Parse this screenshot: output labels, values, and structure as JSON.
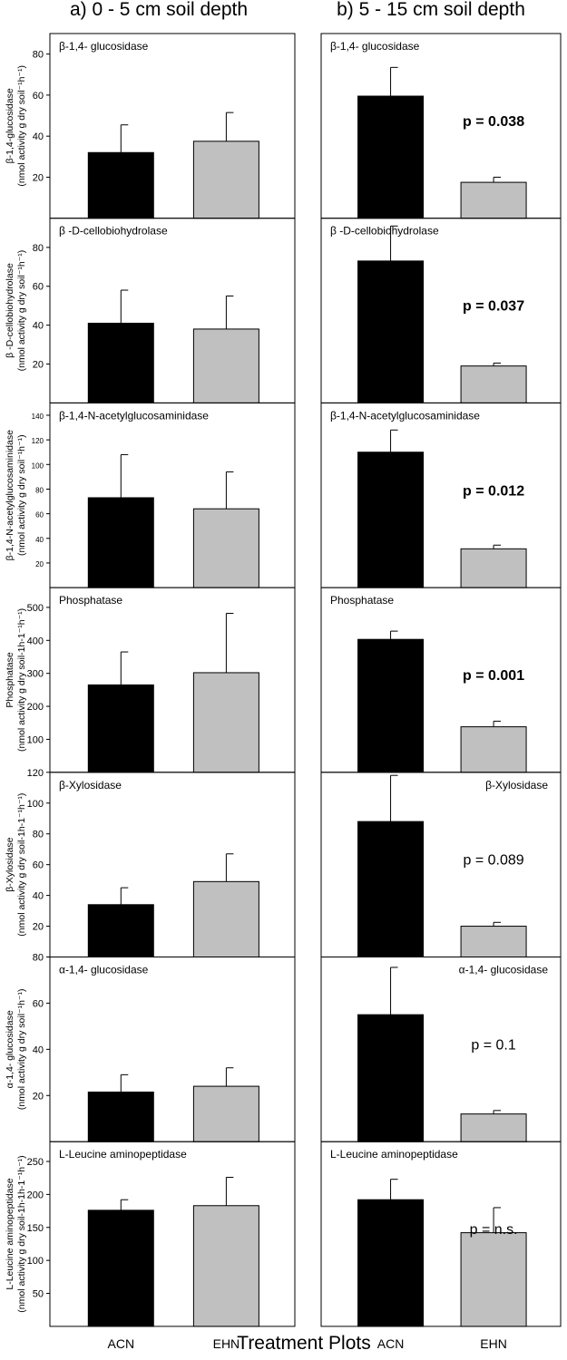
{
  "figure": {
    "col_titles": [
      "a) 0 - 5 cm soil depth",
      "b) 5 - 15 cm soil depth"
    ],
    "x_title": "Treatment Plots",
    "categories": [
      "ACN",
      "EHN"
    ],
    "colors": {
      "ACN": "#000000",
      "EHN": "#c0c0c0",
      "frame": "#000000"
    }
  },
  "chart_data": [
    {
      "type": "bar",
      "enzyme": "β-1,4- glucosidase",
      "ylabel": [
        "β-1,4-glucosidase",
        "(nmol activity g dry soil⁻¹h⁻¹)"
      ],
      "ylim": [
        0,
        90
      ],
      "yticks": [
        20,
        40,
        60,
        80
      ],
      "small_ticks": false,
      "panels": [
        {
          "depth": "0 - 5 cm",
          "label": "β-1,4- glucosidase",
          "label_align": "left",
          "p": "",
          "p_bold": false,
          "values": [
            32,
            37.5
          ],
          "errors": [
            13.5,
            14
          ]
        },
        {
          "depth": "5 - 15 cm",
          "label": "β-1,4- glucosidase",
          "label_align": "left",
          "p": "p = 0.038",
          "p_bold": true,
          "values": [
            59.5,
            17.5
          ],
          "errors": [
            14,
            2.5
          ]
        }
      ]
    },
    {
      "type": "bar",
      "enzyme": "β -D-cellobiohydrolase",
      "ylabel": [
        "β -D-cellobiohydrolase",
        "(nmol activity g dry soil⁻¹h⁻¹)"
      ],
      "ylim": [
        0,
        95
      ],
      "yticks": [
        20,
        40,
        60,
        80
      ],
      "small_ticks": false,
      "panels": [
        {
          "depth": "0 - 5 cm",
          "label": "β -D-cellobiohydrolase",
          "label_align": "left",
          "p": "",
          "p_bold": false,
          "values": [
            41,
            38
          ],
          "errors": [
            17,
            17
          ]
        },
        {
          "depth": "5 - 15 cm",
          "label": "β -D-cellobiohydrolase",
          "label_align": "left",
          "p": "p = 0.037",
          "p_bold": true,
          "values": [
            73,
            19
          ],
          "errors": [
            18,
            1.5
          ]
        }
      ]
    },
    {
      "type": "bar",
      "enzyme": "β-1,4-N-acetylglucosaminidase",
      "ylabel": [
        "β-1,4-N-acetylglucosaminidase",
        "(nmol activity g dry soil⁻¹h⁻¹)"
      ],
      "ylim": [
        0,
        150
      ],
      "yticks": [
        20,
        40,
        60,
        80,
        100,
        120,
        140
      ],
      "small_ticks": true,
      "panels": [
        {
          "depth": "0 - 5 cm",
          "label": "β-1,4-N-acetylglucosaminidase",
          "label_align": "left",
          "p": "",
          "p_bold": false,
          "values": [
            73,
            64
          ],
          "errors": [
            35,
            30
          ]
        },
        {
          "depth": "5 - 15 cm",
          "label": "β-1,4-N-acetylglucosaminidase",
          "label_align": "left",
          "p": "p = 0.012",
          "p_bold": true,
          "values": [
            110,
            31.5
          ],
          "errors": [
            18,
            3
          ]
        }
      ]
    },
    {
      "type": "bar",
      "enzyme": "Phosphatase",
      "ylabel": [
        "Phosphatase",
        "(nmol activity g dry soil-1h-1⁻¹h⁻¹)"
      ],
      "ylim": [
        0,
        560
      ],
      "yticks": [
        100,
        200,
        300,
        400,
        500
      ],
      "small_ticks": false,
      "panels": [
        {
          "depth": "0 - 5 cm",
          "label": "Phosphatase",
          "label_align": "left",
          "p": "",
          "p_bold": false,
          "values": [
            265,
            302
          ],
          "errors": [
            100,
            180
          ]
        },
        {
          "depth": "5 - 15 cm",
          "label": "Phosphatase",
          "label_align": "left",
          "p": "p = 0.001",
          "p_bold": true,
          "values": [
            403,
            138
          ],
          "errors": [
            25,
            17
          ]
        }
      ]
    },
    {
      "type": "bar",
      "enzyme": "β-Xylosidase",
      "ylabel": [
        "β-Xylosidase",
        "(nmol activity g dry soil-1h-1⁻¹h⁻¹)"
      ],
      "ylim": [
        0,
        120
      ],
      "yticks": [
        20,
        40,
        60,
        80,
        100,
        120
      ],
      "small_ticks": false,
      "panels": [
        {
          "depth": "0 - 5 cm",
          "label": "β-Xylosidase",
          "label_align": "left",
          "p": "",
          "p_bold": false,
          "values": [
            34,
            49
          ],
          "errors": [
            11,
            18
          ]
        },
        {
          "depth": "5 - 15 cm",
          "label": "β-Xylosidase",
          "label_align": "right",
          "p": "p = 0.089",
          "p_bold": false,
          "values": [
            88,
            20
          ],
          "errors": [
            30,
            2.5
          ]
        }
      ]
    },
    {
      "type": "bar",
      "enzyme": "α-1,4- glucosidase",
      "ylabel": [
        "α-1,4- glucosidase",
        "(nmol activity g dry soil⁻¹h⁻¹)"
      ],
      "ylim": [
        0,
        80
      ],
      "yticks": [
        20,
        40,
        60,
        80
      ],
      "small_ticks": false,
      "panels": [
        {
          "depth": "0 - 5 cm",
          "label": "α-1,4- glucosidase",
          "label_align": "left",
          "p": "",
          "p_bold": false,
          "values": [
            21.5,
            24
          ],
          "errors": [
            7.5,
            8
          ]
        },
        {
          "depth": "5 - 15 cm",
          "label": "α-1,4- glucosidase",
          "label_align": "right",
          "p": "p = 0.1",
          "p_bold": false,
          "values": [
            55,
            12
          ],
          "errors": [
            20.5,
            1.5
          ]
        }
      ]
    },
    {
      "type": "bar",
      "enzyme": "L-Leucine aminopeptidase",
      "ylabel": [
        "L-Leucine aminopeptidase",
        "(nmol activity g dry soil-1h-1h-1⁻¹h⁻¹)"
      ],
      "ylim": [
        0,
        280
      ],
      "yticks": [
        50,
        100,
        150,
        200,
        250
      ],
      "small_ticks": false,
      "panels": [
        {
          "depth": "0 - 5 cm",
          "label": "L-Leucine aminopeptidase",
          "label_align": "left",
          "p": "",
          "p_bold": false,
          "values": [
            176,
            183
          ],
          "errors": [
            16,
            43
          ]
        },
        {
          "depth": "5 - 15 cm",
          "label": "L-Leucine aminopeptidase",
          "label_align": "left",
          "p": "p = n.s.",
          "p_bold": false,
          "values": [
            192,
            142
          ],
          "errors": [
            31,
            38
          ]
        }
      ]
    }
  ]
}
